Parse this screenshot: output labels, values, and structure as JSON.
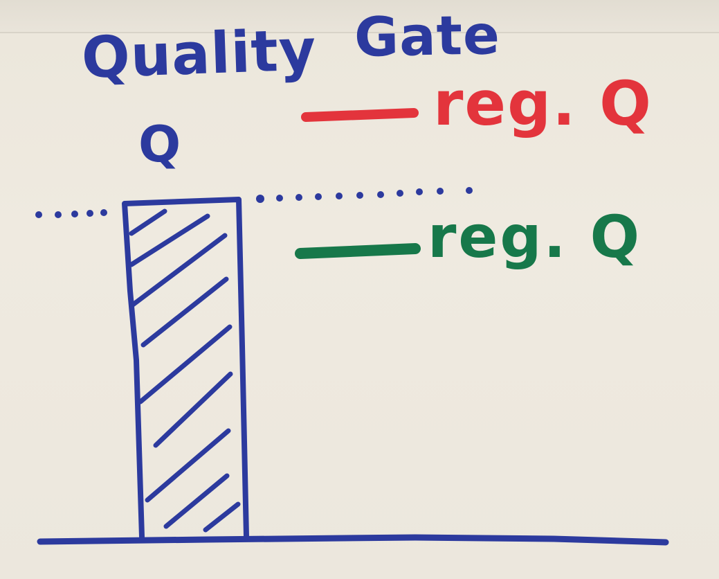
{
  "title": {
    "word1": "Quality",
    "word2": "Gate"
  },
  "axis": {
    "y_label": "Q"
  },
  "legend": [
    {
      "label": "reg. Q",
      "color": "#e3343c"
    },
    {
      "label": "reg. Q",
      "color": "#17784a"
    }
  ],
  "colors": {
    "ink_blue": "#2c3a9e",
    "ink_red": "#e3343c",
    "ink_green": "#17784a",
    "paper": "#efeae0"
  }
}
